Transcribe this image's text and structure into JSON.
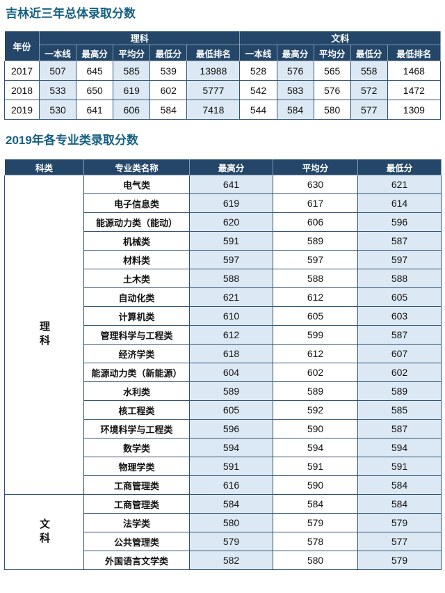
{
  "page": {
    "title1": "吉林近三年总体录取分数",
    "title2": "2019年各专业类录取分数"
  },
  "colors": {
    "title": "#156082",
    "header_bg": "#234669",
    "cell_alt": "#dce9f4",
    "border": "#2f5376"
  },
  "overall_table": {
    "header": {
      "year": "年份",
      "science": "理科",
      "arts": "文科",
      "sub": [
        "一本线",
        "最高分",
        "平均分",
        "最低分",
        "最低排名"
      ]
    },
    "rows": [
      {
        "cells": [
          "2017",
          "507",
          "645",
          "585",
          "539",
          "13988",
          "528",
          "576",
          "565",
          "558",
          "1468"
        ]
      },
      {
        "cells": [
          "2018",
          "533",
          "650",
          "619",
          "602",
          "5777",
          "542",
          "583",
          "576",
          "572",
          "1472"
        ]
      },
      {
        "cells": [
          "2019",
          "530",
          "641",
          "606",
          "584",
          "7418",
          "544",
          "584",
          "580",
          "577",
          "1309"
        ]
      }
    ]
  },
  "major_table": {
    "header": [
      "科类",
      "专业类名称",
      "最高分",
      "平均分",
      "最低分"
    ],
    "groups": [
      {
        "label": "理科",
        "rows": [
          {
            "name": "电气类",
            "max": "641",
            "avg": "630",
            "min": "621"
          },
          {
            "name": "电子信息类",
            "max": "619",
            "avg": "617",
            "min": "614"
          },
          {
            "name": "能源动力类（能动）",
            "max": "620",
            "avg": "606",
            "min": "596"
          },
          {
            "name": "机械类",
            "max": "591",
            "avg": "589",
            "min": "587"
          },
          {
            "name": "材料类",
            "max": "597",
            "avg": "597",
            "min": "597"
          },
          {
            "name": "土木类",
            "max": "588",
            "avg": "588",
            "min": "588"
          },
          {
            "name": "自动化类",
            "max": "621",
            "avg": "612",
            "min": "605"
          },
          {
            "name": "计算机类",
            "max": "610",
            "avg": "605",
            "min": "603"
          },
          {
            "name": "管理科学与工程类",
            "max": "612",
            "avg": "599",
            "min": "587"
          },
          {
            "name": "经济学类",
            "max": "618",
            "avg": "612",
            "min": "607"
          },
          {
            "name": "能源动力类（新能源）",
            "max": "604",
            "avg": "602",
            "min": "602"
          },
          {
            "name": "水利类",
            "max": "589",
            "avg": "589",
            "min": "589"
          },
          {
            "name": "核工程类",
            "max": "605",
            "avg": "592",
            "min": "585"
          },
          {
            "name": "环境科学与工程类",
            "max": "596",
            "avg": "590",
            "min": "587"
          },
          {
            "name": "数学类",
            "max": "594",
            "avg": "594",
            "min": "594"
          },
          {
            "name": "物理学类",
            "max": "591",
            "avg": "591",
            "min": "591"
          },
          {
            "name": "工商管理类",
            "max": "616",
            "avg": "590",
            "min": "584"
          }
        ]
      },
      {
        "label": "文科",
        "rows": [
          {
            "name": "工商管理类",
            "max": "584",
            "avg": "584",
            "min": "584"
          },
          {
            "name": "法学类",
            "max": "580",
            "avg": "579",
            "min": "579"
          },
          {
            "name": "公共管理类",
            "max": "579",
            "avg": "578",
            "min": "577"
          },
          {
            "name": "外国语言文学类",
            "max": "582",
            "avg": "580",
            "min": "579"
          }
        ]
      }
    ]
  }
}
